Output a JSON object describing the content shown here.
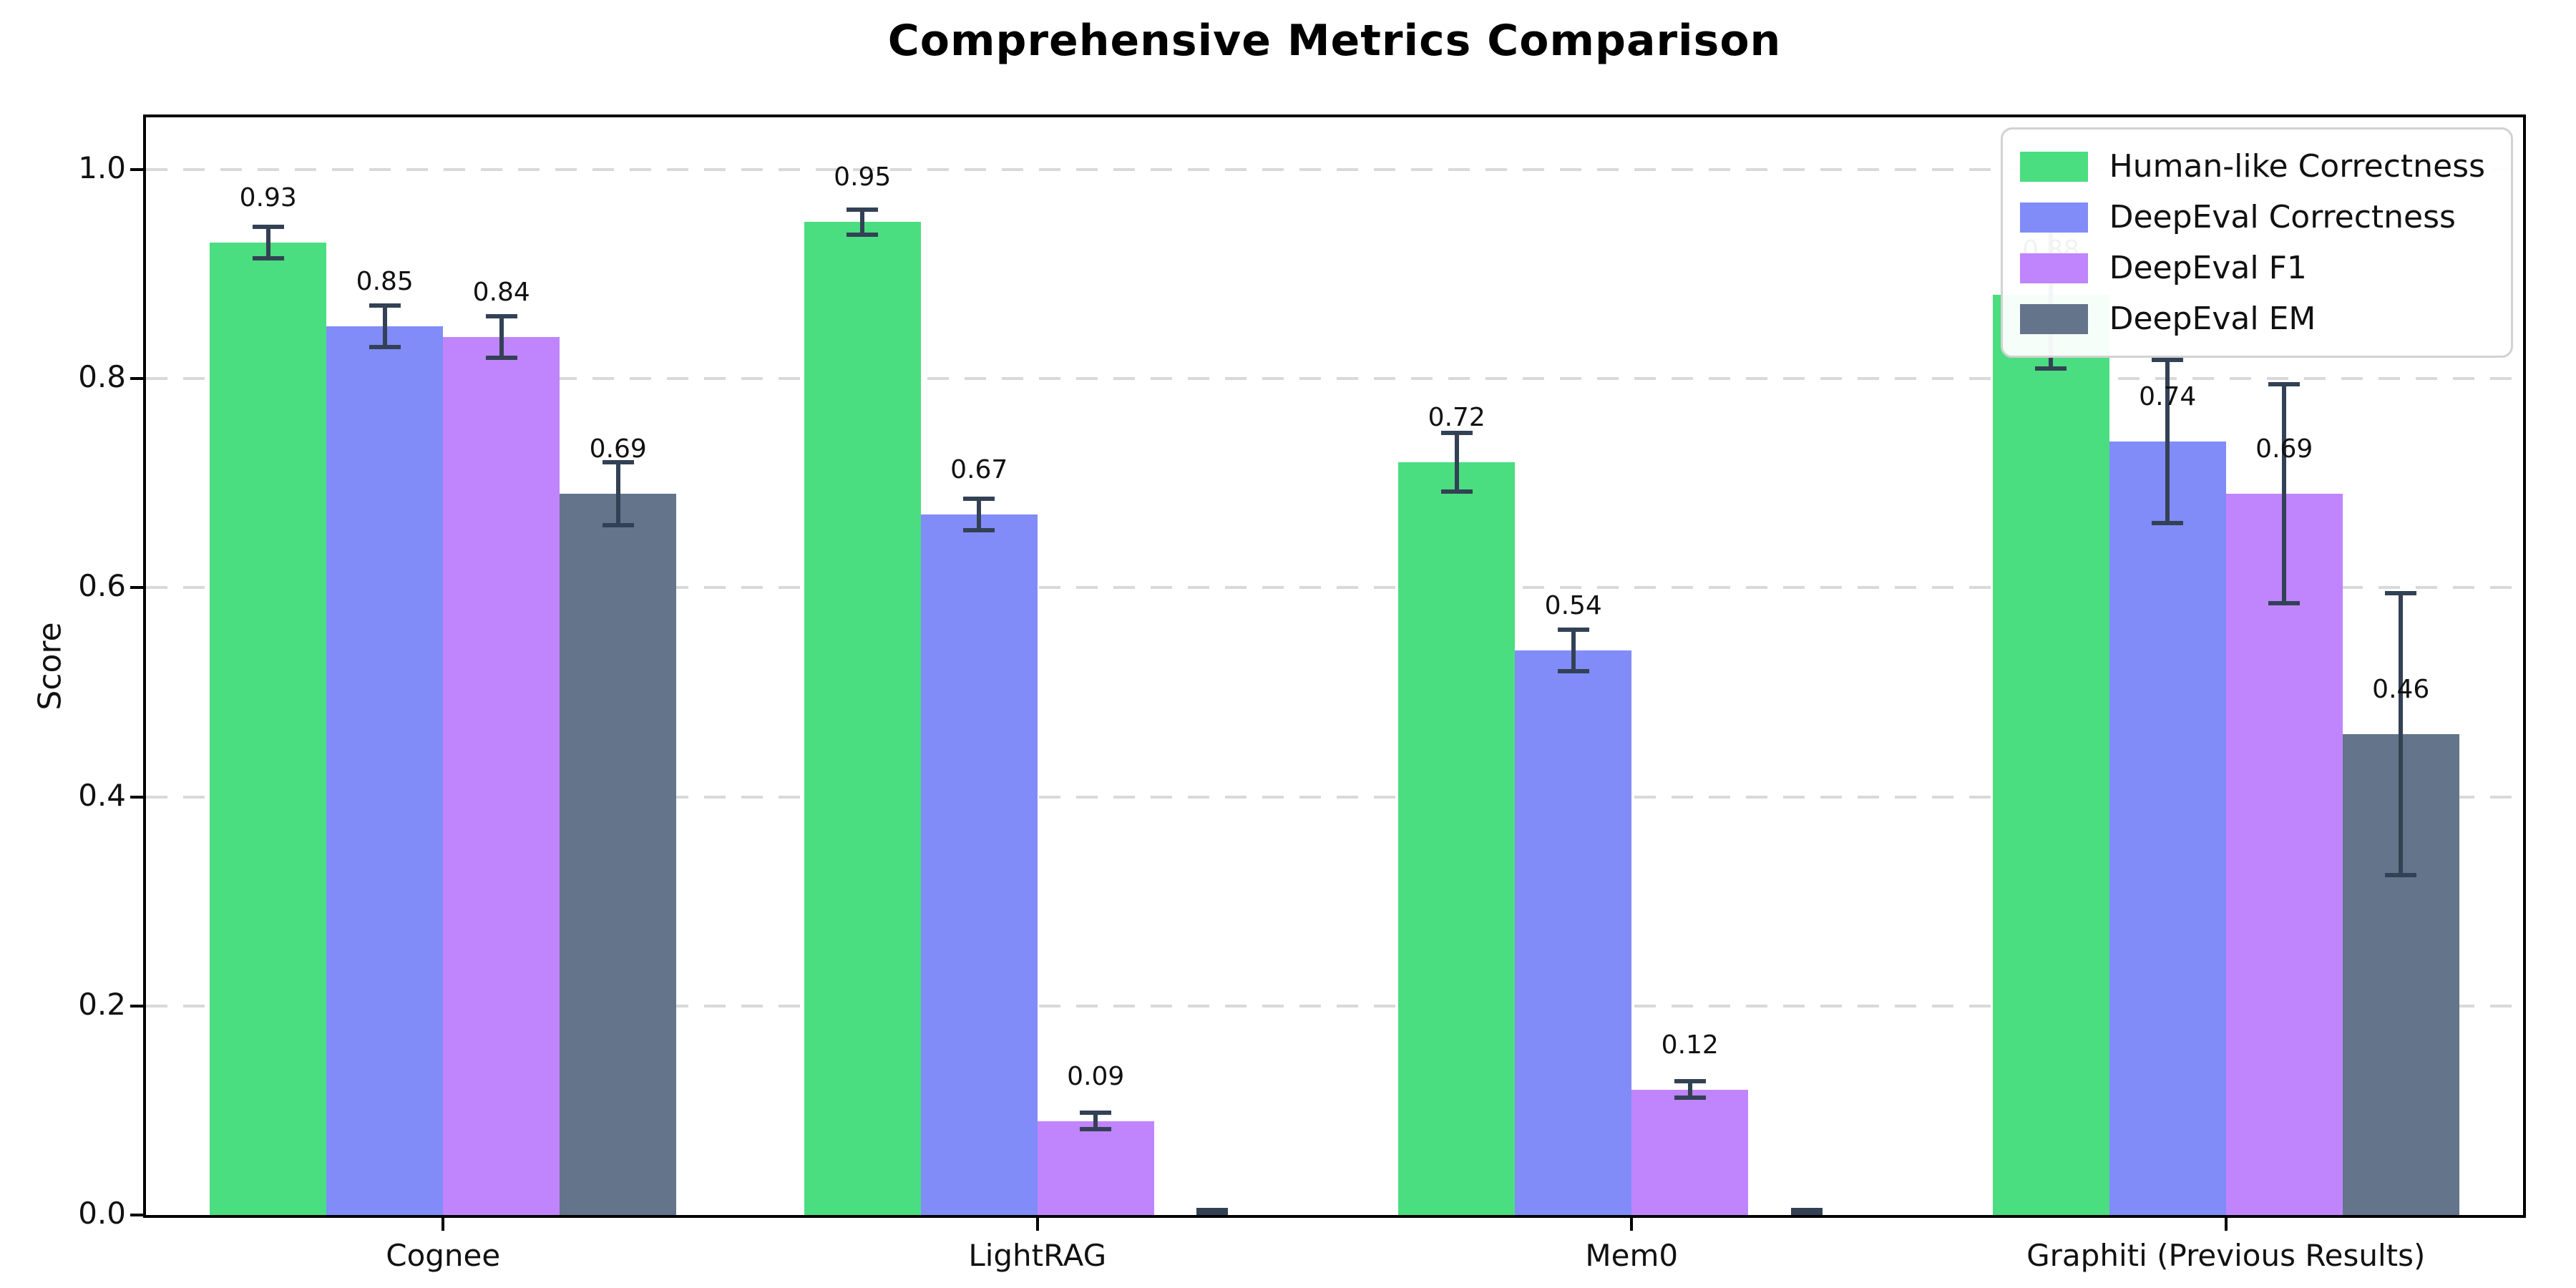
{
  "chart_data": {
    "type": "bar",
    "title": "Comprehensive Metrics Comparison",
    "ylabel": "Score",
    "xlabel": "",
    "categories": [
      "Cognee",
      "LightRAG",
      "Mem0",
      "Graphiti (Previous Results)"
    ],
    "series": [
      {
        "name": "Human-like Correctness",
        "color": "#4ade80",
        "values": [
          0.93,
          0.95,
          0.72,
          0.88
        ],
        "errors": [
          0.015,
          0.012,
          0.028,
          0.07
        ],
        "labels": [
          "0.93",
          "0.95",
          "0.72",
          "0.88"
        ]
      },
      {
        "name": "DeepEval Correctness",
        "color": "#818cf8",
        "values": [
          0.85,
          0.67,
          0.54,
          0.74
        ],
        "errors": [
          0.02,
          0.015,
          0.02,
          0.078
        ],
        "labels": [
          "0.85",
          "0.67",
          "0.54",
          "0.74"
        ]
      },
      {
        "name": "DeepEval F1",
        "color": "#c084fc",
        "values": [
          0.84,
          0.09,
          0.12,
          0.69
        ],
        "errors": [
          0.02,
          0.008,
          0.008,
          0.105
        ],
        "labels": [
          "0.84",
          "0.09",
          "0.12",
          "0.69"
        ]
      },
      {
        "name": "DeepEval EM",
        "color": "#64748b",
        "values": [
          0.69,
          0.0,
          0.0,
          0.46
        ],
        "errors": [
          0.03,
          0.005,
          0.005,
          0.135
        ],
        "labels": [
          "0.69",
          null,
          null,
          "0.46"
        ]
      }
    ],
    "ylim": [
      0,
      1.05
    ],
    "yticks": [
      0.0,
      0.2,
      0.4,
      0.6,
      0.8,
      1.0
    ],
    "ytick_labels": [
      "0.0",
      "0.2",
      "0.4",
      "0.6",
      "0.8",
      "1.0"
    ],
    "grid": {
      "axis": "y",
      "style": "dashed",
      "color": "#d9d9d9"
    },
    "legend": {
      "position": "upper right"
    },
    "error_bar_color": "#334155",
    "axis_color": "#000000",
    "text_color": "#111111"
  }
}
